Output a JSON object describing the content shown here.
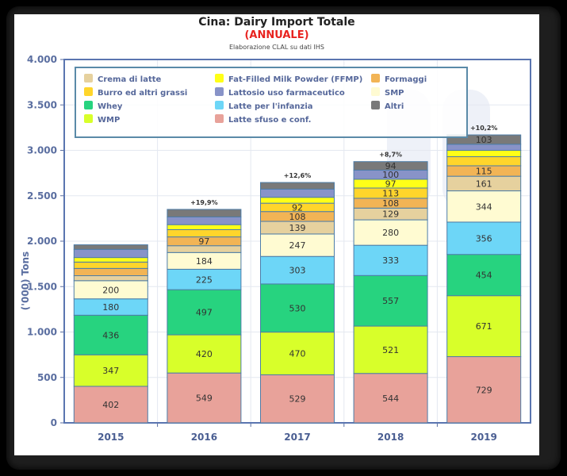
{
  "chart_data": {
    "type": "bar",
    "stacked": true,
    "title": "Cina: Dairy Import Totale",
    "subtitle": "(ANNUALE)",
    "source": "Elaborazione CLAL su dati IHS",
    "xlabel": "",
    "ylabel": "('000) Tons",
    "ylim": [
      0,
      4000
    ],
    "yticks": [
      0,
      500,
      1000,
      1500,
      2000,
      2500,
      3000,
      3500,
      4000
    ],
    "ytick_labels": [
      "0",
      "500",
      "1.000",
      "1.500",
      "2.000",
      "2.500",
      "3.000",
      "3.500",
      "4.000"
    ],
    "grid": true,
    "legend_position": "top-left inside",
    "categories": [
      "2015",
      "2016",
      "2017",
      "2018",
      "2019"
    ],
    "growth_labels": [
      "",
      "+19,9%",
      "+12,6%",
      "+8,7%",
      "+10,2%"
    ],
    "series": [
      {
        "name": "Latte sfuso e conf.",
        "color": "#e8a29a",
        "values": [
          402,
          549,
          529,
          544,
          729
        ],
        "labeled": [
          true,
          true,
          true,
          true,
          true
        ]
      },
      {
        "name": "WMP",
        "color": "#d8ff2a",
        "values": [
          347,
          420,
          470,
          521,
          671
        ],
        "labeled": [
          true,
          true,
          true,
          true,
          true
        ]
      },
      {
        "name": "Whey",
        "color": "#27d37f",
        "values": [
          436,
          497,
          530,
          557,
          454
        ],
        "labeled": [
          true,
          true,
          true,
          true,
          true
        ]
      },
      {
        "name": "Latte per l'infanzia",
        "color": "#6dd6f7",
        "values": [
          180,
          225,
          303,
          333,
          356
        ],
        "labeled": [
          true,
          true,
          true,
          true,
          true
        ]
      },
      {
        "name": "SMP",
        "color": "#fffbd2",
        "values": [
          200,
          184,
          247,
          280,
          344
        ],
        "labeled": [
          true,
          true,
          true,
          true,
          true
        ]
      },
      {
        "name": "Crema di latte",
        "color": "#e6d19e",
        "values": [
          55,
          75,
          139,
          129,
          161
        ],
        "labeled": [
          false,
          false,
          true,
          true,
          true
        ]
      },
      {
        "name": "Formaggi",
        "color": "#f2b455",
        "values": [
          80,
          97,
          108,
          108,
          115
        ],
        "labeled": [
          false,
          true,
          true,
          true,
          true
        ]
      },
      {
        "name": "Burro ed altri grassi",
        "color": "#ffd52b",
        "values": [
          70,
          80,
          92,
          113,
          100
        ],
        "labeled": [
          false,
          false,
          true,
          true,
          false
        ]
      },
      {
        "name": "Fat-Filled Milk Powder (FFMP)",
        "color": "#ffff17",
        "values": [
          50,
          55,
          65,
          97,
          70
        ],
        "labeled": [
          false,
          false,
          false,
          true,
          false
        ]
      },
      {
        "name": "Lattosio uso farmaceutico",
        "color": "#8893c8",
        "values": [
          90,
          85,
          90,
          100,
          67
        ],
        "labeled": [
          false,
          false,
          false,
          true,
          false
        ]
      },
      {
        "name": "Altri",
        "color": "#797979",
        "values": [
          50,
          83,
          73,
          94,
          103
        ],
        "labeled": [
          false,
          false,
          false,
          true,
          true
        ]
      }
    ],
    "legend": [
      {
        "name": "Crema di latte",
        "color": "#e6d19e"
      },
      {
        "name": "Fat-Filled Milk Powder (FFMP)",
        "color": "#ffff17"
      },
      {
        "name": "Formaggi",
        "color": "#f2b455"
      },
      {
        "name": "Burro ed altri grassi",
        "color": "#ffd52b"
      },
      {
        "name": "Lattosio uso farmaceutico",
        "color": "#8893c8"
      },
      {
        "name": "SMP",
        "color": "#fffbd2"
      },
      {
        "name": "Whey",
        "color": "#27d37f"
      },
      {
        "name": "Latte per l'infanzia",
        "color": "#6dd6f7"
      },
      {
        "name": "Altri",
        "color": "#797979"
      },
      {
        "name": "WMP",
        "color": "#d8ff2a"
      },
      {
        "name": "Latte sfuso e conf.",
        "color": "#e8a29a"
      }
    ]
  }
}
